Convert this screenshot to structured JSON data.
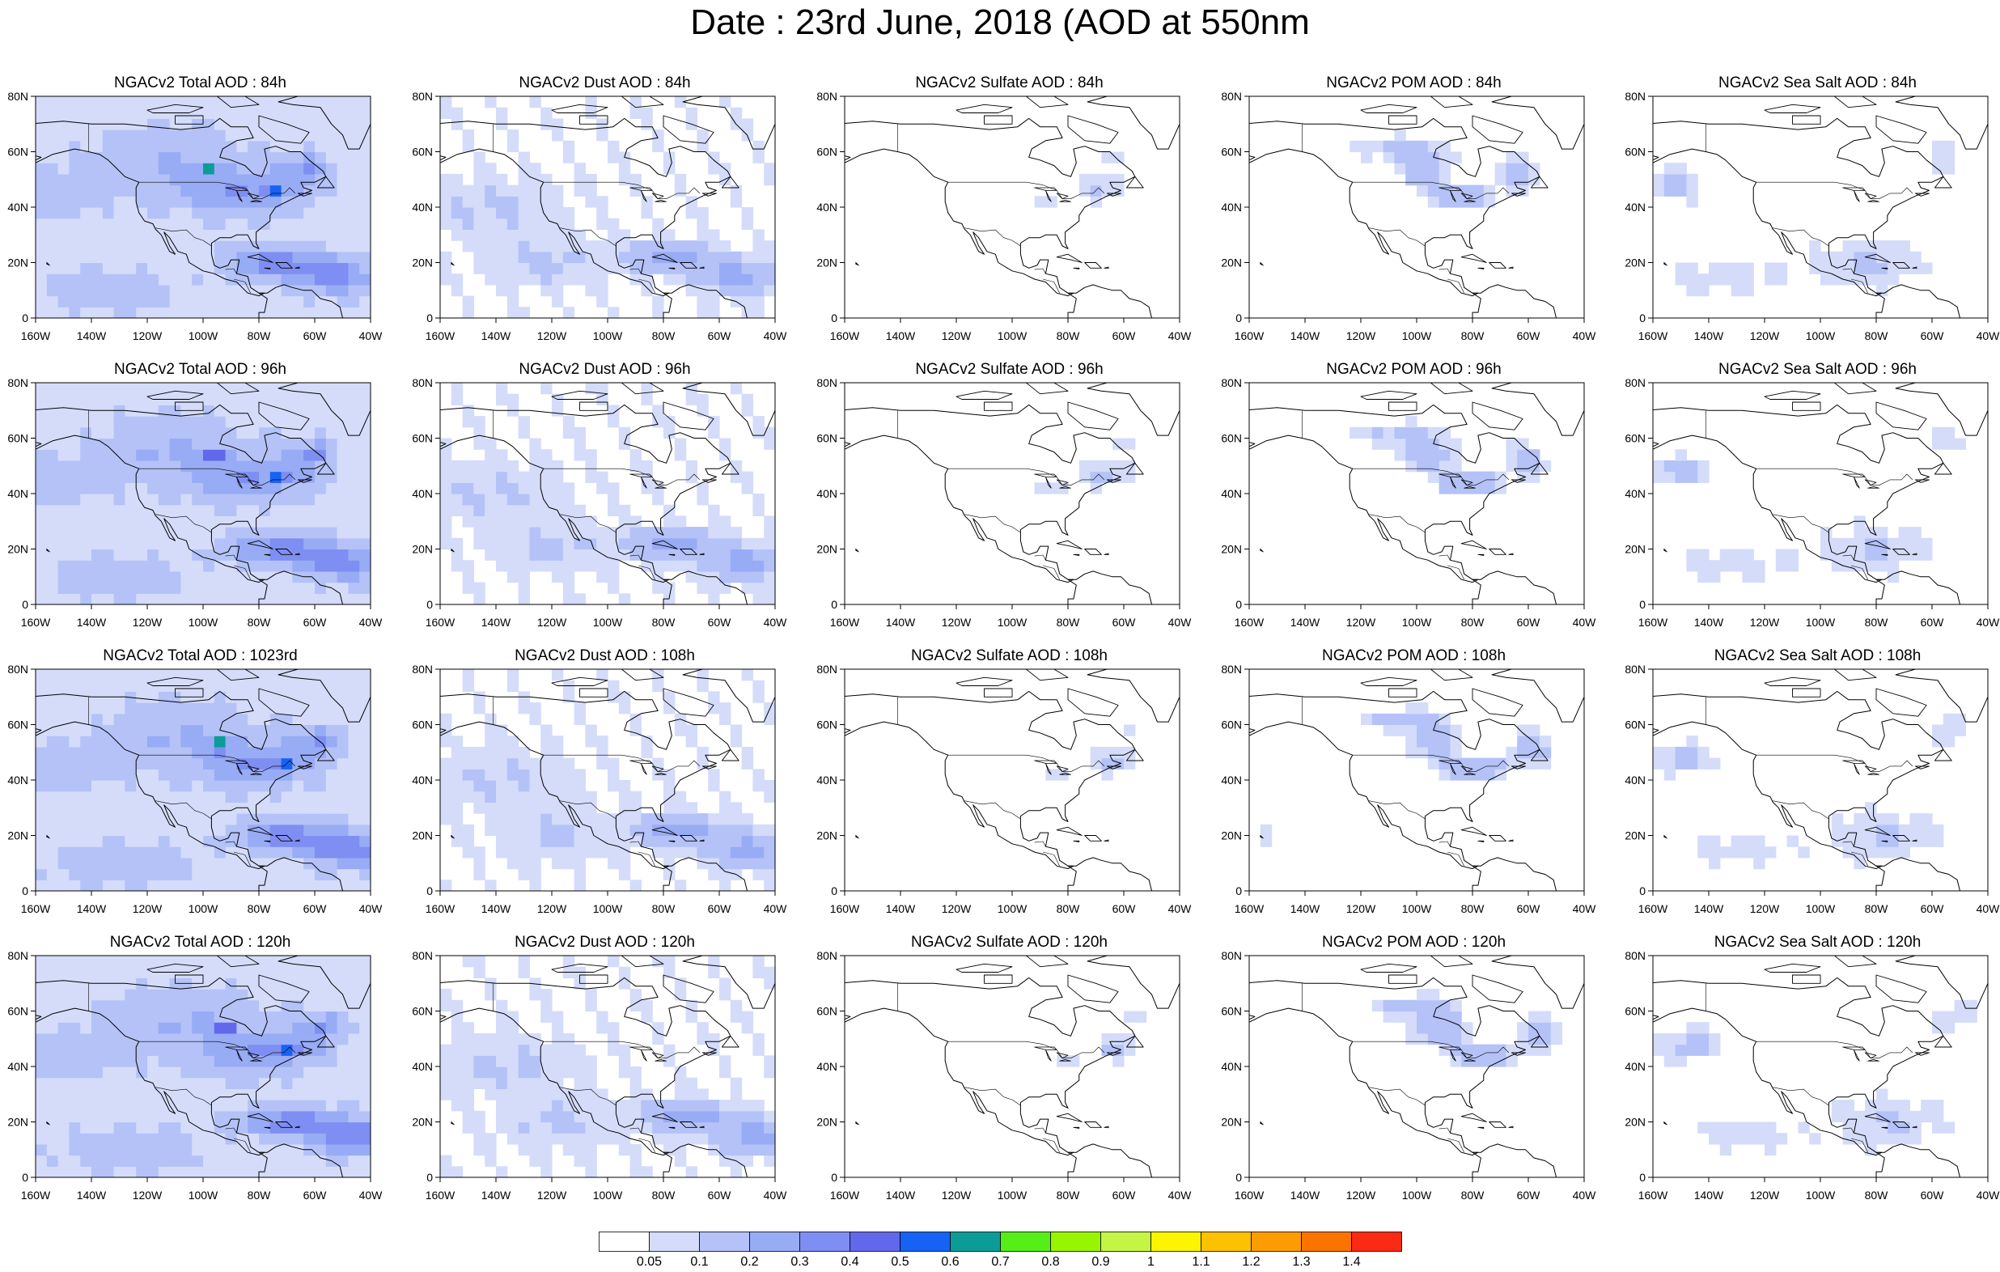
{
  "title": "Date : 23rd June, 2018 (AOD at 550nm",
  "colors": {
    "land": "#ffffff",
    "ocean": "#ffffff",
    "coast": "#000000"
  },
  "panels": [
    {
      "title": "NGACv2 Total AOD : 84h",
      "field": "total"
    },
    {
      "title": "NGACv2 Dust AOD : 84h",
      "field": "dust"
    },
    {
      "title": "NGACv2 Sulfate AOD : 84h",
      "field": "sulfate"
    },
    {
      "title": "NGACv2 POM AOD : 84h",
      "field": "pom"
    },
    {
      "title": "NGACv2 Sea Salt AOD : 84h",
      "field": "seasalt"
    },
    {
      "title": "NGACv2 Total AOD : 96h",
      "field": "total"
    },
    {
      "title": "NGACv2 Dust AOD : 96h",
      "field": "dust"
    },
    {
      "title": "NGACv2 Sulfate AOD : 96h",
      "field": "sulfate"
    },
    {
      "title": "NGACv2 POM AOD : 96h",
      "field": "pom"
    },
    {
      "title": "NGACv2 Sea Salt AOD : 96h",
      "field": "seasalt"
    },
    {
      "title": "NGACv2 Total AOD : 1023rd",
      "field": "total"
    },
    {
      "title": "NGACv2 Dust AOD : 108h",
      "field": "dust"
    },
    {
      "title": "NGACv2 Sulfate AOD : 108h",
      "field": "sulfate"
    },
    {
      "title": "NGACv2 POM AOD : 108h",
      "field": "pom"
    },
    {
      "title": "NGACv2 Sea Salt AOD : 108h",
      "field": "seasalt"
    },
    {
      "title": "NGACv2 Total AOD : 120h",
      "field": "total"
    },
    {
      "title": "NGACv2 Dust AOD : 120h",
      "field": "dust"
    },
    {
      "title": "NGACv2 Sulfate AOD : 120h",
      "field": "sulfate"
    },
    {
      "title": "NGACv2 POM AOD : 120h",
      "field": "pom"
    },
    {
      "title": "NGACv2 Sea Salt  AOD : 120h",
      "field": "seasalt"
    }
  ],
  "lat_ticks": [
    "80N",
    "60N",
    "40N",
    "20N",
    "0"
  ],
  "lon_ticks": [
    "160W",
    "140W",
    "120W",
    "100W",
    "80W",
    "60W",
    "40W"
  ],
  "colorbar": {
    "levels": [
      "0.05",
      "0.1",
      "0.2",
      "0.3",
      "0.4",
      "0.5",
      "0.6",
      "0.7",
      "0.8",
      "0.9",
      "1",
      "1.1",
      "1.2",
      "1.3",
      "1.4"
    ],
    "colors": [
      "#ffffff",
      "#d4dcfa",
      "#b4c2f7",
      "#98abf5",
      "#7e8ef2",
      "#6268ec",
      "#1662f4",
      "#0c9c98",
      "#55ef17",
      "#98f500",
      "#c4f544",
      "#fcf400",
      "#fcc200",
      "#fd9c00",
      "#fb7400",
      "#fa2a14"
    ]
  }
}
